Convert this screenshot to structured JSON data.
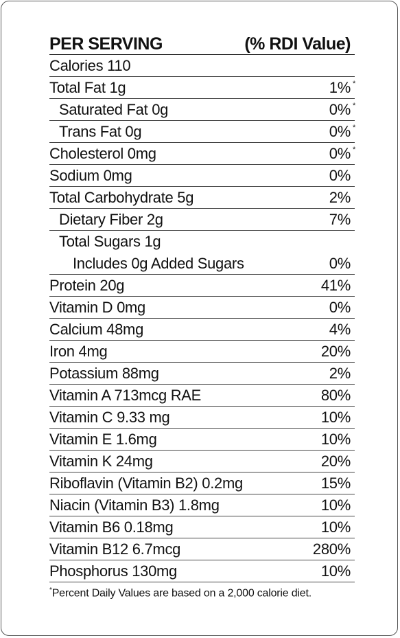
{
  "header": {
    "left": "PER SERVING",
    "right": "(% RDI Value)"
  },
  "rows": [
    {
      "name": "Calories  110",
      "pct": "",
      "ast": "",
      "indent": 0,
      "line": true
    },
    {
      "name": "Total Fat  1g",
      "pct": "1%",
      "ast": "*",
      "indent": 0,
      "line": true
    },
    {
      "name": "Saturated Fat  0g",
      "pct": "0%",
      "ast": "*",
      "indent": 1,
      "line": true
    },
    {
      "name": "Trans Fat  0g",
      "pct": "0%",
      "ast": "*",
      "indent": 1,
      "line": true
    },
    {
      "name": "Cholesterol  0mg",
      "pct": "0%",
      "ast": "*",
      "indent": 0,
      "line": true
    },
    {
      "name": "Sodium  0mg",
      "pct": "0%",
      "ast": "",
      "indent": 0,
      "line": true
    },
    {
      "name": "Total Carbohydrate  5g",
      "pct": "2%",
      "ast": "",
      "indent": 0,
      "line": true
    },
    {
      "name": "Dietary Fiber  2g",
      "pct": "7%",
      "ast": "",
      "indent": 1,
      "line": true
    },
    {
      "name": "Total Sugars  1g",
      "pct": "",
      "ast": "",
      "indent": 1,
      "line": false
    },
    {
      "name": "Includes 0g Added Sugars",
      "pct": "0%",
      "ast": "",
      "indent": 2,
      "line": true
    },
    {
      "name": "Protein  20g",
      "pct": "41%",
      "ast": "",
      "indent": 0,
      "line": true
    },
    {
      "name": "Vitamin D  0mg",
      "pct": "0%",
      "ast": "",
      "indent": 0,
      "line": true
    },
    {
      "name": "Calcium  48mg",
      "pct": "4%",
      "ast": "",
      "indent": 0,
      "line": true
    },
    {
      "name": "Iron  4mg",
      "pct": "20%",
      "ast": "",
      "indent": 0,
      "line": true
    },
    {
      "name": "Potassium  88mg",
      "pct": "2%",
      "ast": "",
      "indent": 0,
      "line": true
    },
    {
      "name": "Vitamin A 713mcg RAE",
      "pct": "80%",
      "ast": "",
      "indent": 0,
      "line": true
    },
    {
      "name": "Vitamin C  9.33 mg",
      "pct": "10%",
      "ast": "",
      "indent": 0,
      "line": true
    },
    {
      "name": "Vitamin E  1.6mg",
      "pct": "10%",
      "ast": "",
      "indent": 0,
      "line": true
    },
    {
      "name": "Vitamin K  24mg",
      "pct": "20%",
      "ast": "",
      "indent": 0,
      "line": true
    },
    {
      "name": "Riboflavin (Vitamin B2)  0.2mg",
      "pct": "15%",
      "ast": "",
      "indent": 0,
      "line": true
    },
    {
      "name": "Niacin (Vitamin B3)  1.8mg",
      "pct": "10%",
      "ast": "",
      "indent": 0,
      "line": true
    },
    {
      "name": "Vitamin B6  0.18mg",
      "pct": "10%",
      "ast": "",
      "indent": 0,
      "line": true
    },
    {
      "name": "Vitamin B12  6.7mcg",
      "pct": "280%",
      "ast": "",
      "indent": 0,
      "line": true
    },
    {
      "name": "Phosphorus  130mg",
      "pct": "10%",
      "ast": "",
      "indent": 0,
      "line": true
    }
  ],
  "footnote": {
    "mark": "*",
    "text": "Percent Daily Values are based on a 2,000 calorie diet."
  }
}
